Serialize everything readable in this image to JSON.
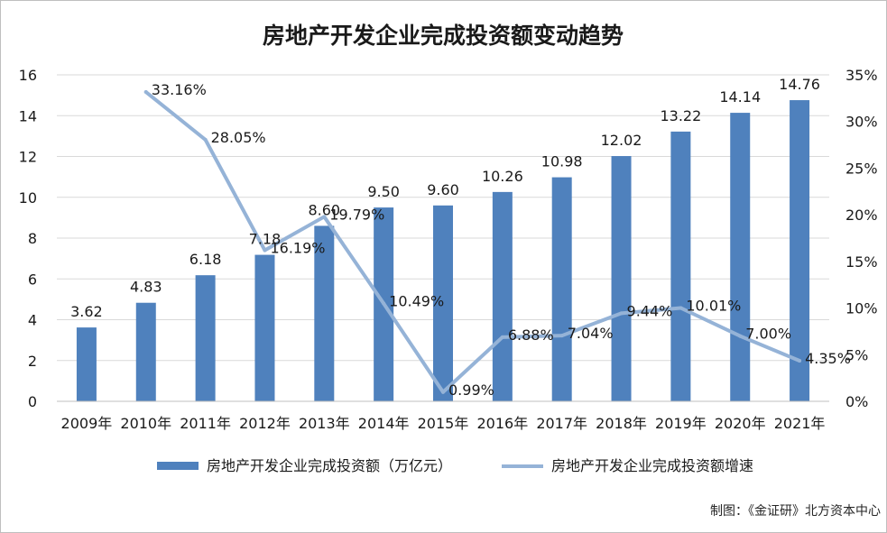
{
  "chart_data": {
    "type": "bar",
    "title": "房地产开发企业完成投资额变动趋势",
    "categories": [
      "2009年",
      "2010年",
      "2011年",
      "2012年",
      "2013年",
      "2014年",
      "2015年",
      "2016年",
      "2017年",
      "2018年",
      "2019年",
      "2020年",
      "2021年"
    ],
    "series": [
      {
        "name": "房地产开发企业完成投资额（万亿元）",
        "type": "bar",
        "axis": "left",
        "color": "#4f81bd",
        "values": [
          3.62,
          4.83,
          6.18,
          7.18,
          8.6,
          9.5,
          9.6,
          10.26,
          10.98,
          12.02,
          13.22,
          14.14,
          14.76
        ],
        "labels": [
          "3.62",
          "4.83",
          "6.18",
          "7.18",
          "8.60",
          "9.50",
          "9.60",
          "10.26",
          "10.98",
          "12.02",
          "13.22",
          "14.14",
          "14.76"
        ]
      },
      {
        "name": "房地产开发企业完成投资额增速",
        "type": "line",
        "axis": "right",
        "color": "#95b3d7",
        "values": [
          null,
          33.16,
          28.05,
          16.19,
          19.79,
          10.49,
          0.99,
          6.88,
          7.04,
          9.44,
          10.01,
          7.0,
          4.35
        ],
        "labels": [
          "",
          "33.16%",
          "28.05%",
          "16.19%",
          "19.79%",
          "10.49%",
          "0.99%",
          "6.88%",
          "7.04%",
          "9.44%",
          "10.01%",
          "7.00%",
          "4.35%"
        ]
      }
    ],
    "ylim_left": [
      0,
      16
    ],
    "yticks_left": [
      "0",
      "2",
      "4",
      "6",
      "8",
      "10",
      "12",
      "14",
      "16"
    ],
    "ylim_right": [
      0,
      35
    ],
    "yticks_right": [
      "0%",
      "5%",
      "10%",
      "15%",
      "20%",
      "25%",
      "30%",
      "35%"
    ],
    "grid": true,
    "legend_position": "bottom"
  },
  "credit": "制图：《金证研》北方资本中心"
}
